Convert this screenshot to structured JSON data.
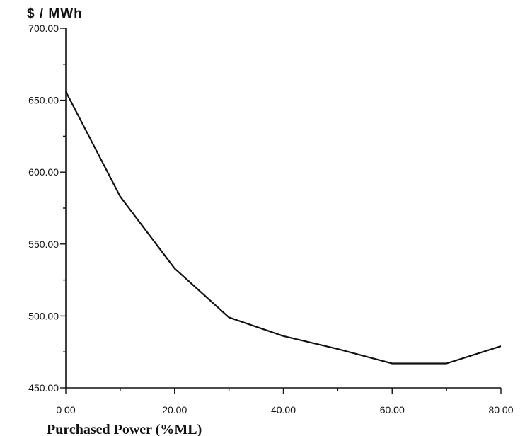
{
  "chart_data": {
    "type": "line",
    "title": "",
    "ylabel": "$ / MWh",
    "xlabel": "Purchased Power (%ML)",
    "x": [
      0,
      10,
      20,
      30,
      40,
      50,
      60,
      70,
      80
    ],
    "series": [
      {
        "values": [
          656,
          583,
          533,
          499,
          486,
          477,
          467,
          467,
          479
        ]
      }
    ],
    "xlim": [
      0,
      80
    ],
    "ylim": [
      450,
      700
    ],
    "x_ticks": [
      0,
      20,
      40,
      60,
      80
    ],
    "x_tick_labels": [
      "0 00",
      "20.00",
      "40.00",
      "60.00",
      "80 00"
    ],
    "y_ticks": [
      450,
      500,
      550,
      600,
      650,
      700
    ],
    "y_tick_labels": [
      "450.00",
      "500.00",
      "550.00",
      "600.00",
      "650.00",
      "700.00"
    ],
    "grid": false,
    "legend": "none",
    "line_color": "#111111"
  }
}
